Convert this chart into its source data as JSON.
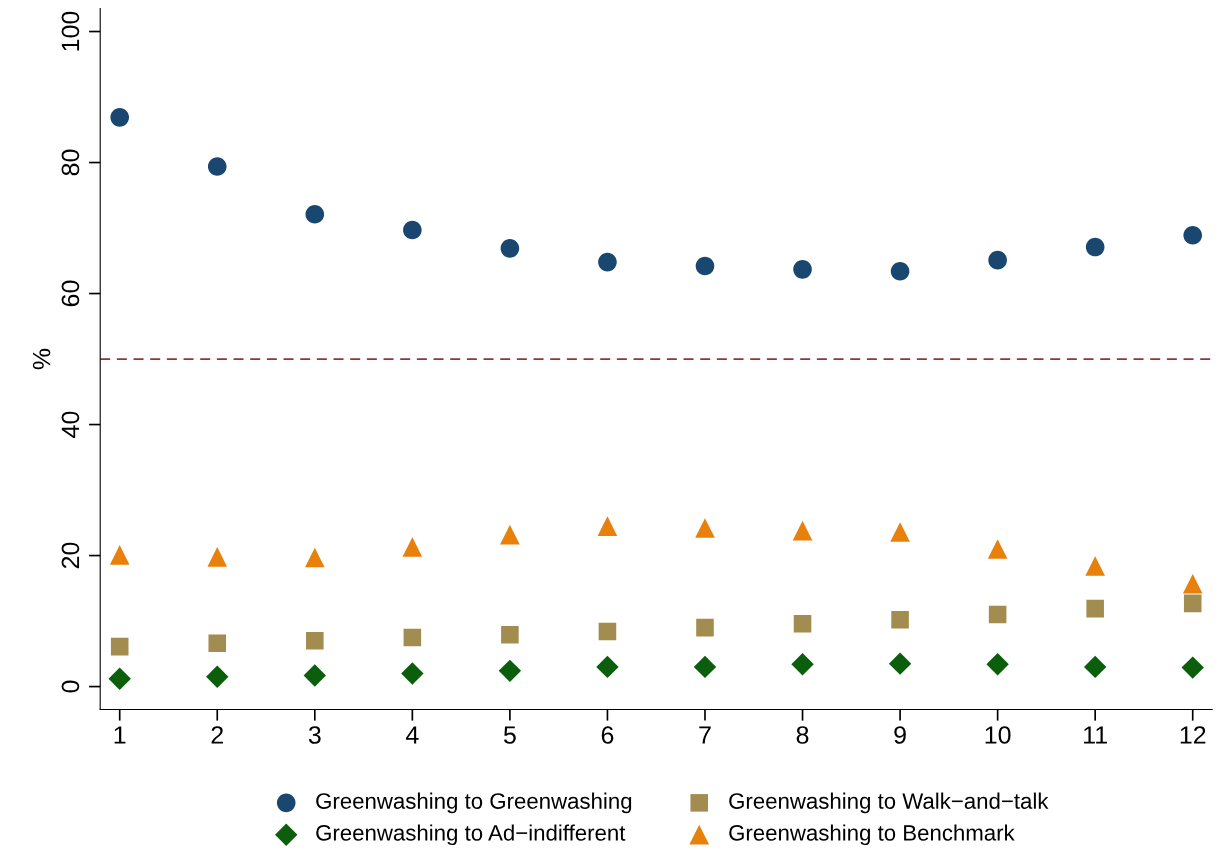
{
  "chart_data": {
    "type": "scatter",
    "ylabel": "%",
    "x": [
      1,
      2,
      3,
      4,
      5,
      6,
      7,
      8,
      9,
      10,
      11,
      12
    ],
    "series": [
      {
        "name": "Greenwashing to Greenwashing",
        "color": "#1a476f",
        "marker": "circle",
        "values": [
          86.9,
          79.4,
          72.1,
          69.7,
          66.9,
          64.8,
          64.2,
          63.7,
          63.4,
          65.1,
          67.1,
          68.9
        ]
      },
      {
        "name": "Greenwashing to Ad−indifferent",
        "color": "#0b5e0b",
        "marker": "diamond",
        "values": [
          1.2,
          1.5,
          1.7,
          2.0,
          2.4,
          3.0,
          3.0,
          3.4,
          3.5,
          3.4,
          3.0,
          2.9
        ]
      },
      {
        "name": "Greenwashing to Walk−and−talk",
        "color": "#a38c4f",
        "marker": "square",
        "values": [
          6.1,
          6.6,
          7.0,
          7.5,
          7.9,
          8.4,
          9.0,
          9.6,
          10.2,
          11.0,
          11.9,
          12.7
        ]
      },
      {
        "name": "Greenwashing to Benchmark",
        "color": "#e8800c",
        "marker": "triangle",
        "values": [
          20.1,
          19.8,
          19.7,
          21.3,
          23.2,
          24.5,
          24.2,
          23.8,
          23.6,
          21.0,
          18.4,
          15.7
        ]
      }
    ],
    "xlim": [
      0.8,
      12.2
    ],
    "xticks": [
      1,
      2,
      3,
      4,
      5,
      6,
      7,
      8,
      9,
      10,
      11,
      12
    ],
    "ylim": [
      -3.5,
      103.5
    ],
    "yticks": [
      0,
      20,
      40,
      60,
      80,
      100
    ],
    "ref_lines": [
      {
        "axis": "y",
        "value": 50,
        "color": "#90353b",
        "line_style": "dashed"
      }
    ],
    "grid": false,
    "legend": "bottom"
  }
}
